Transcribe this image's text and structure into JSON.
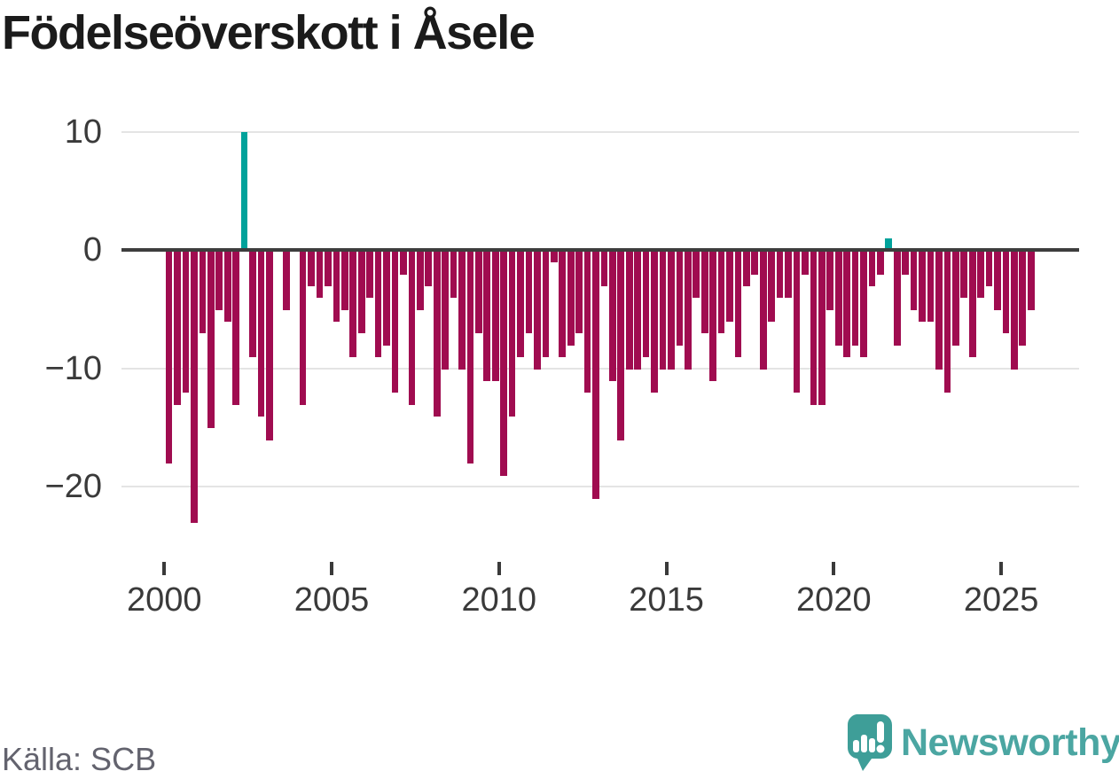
{
  "title": "Födelseöverskott i Åsele",
  "source": "Källa: SCB",
  "logo": {
    "text": "Newsworthy"
  },
  "chart_data": {
    "type": "bar",
    "title": "Födelseöverskott i Åsele",
    "x_period": "quarterly",
    "start": "2000Q1",
    "end": "2025Q4",
    "values": [
      -18,
      -13,
      -12,
      -23,
      -7,
      -15,
      -5,
      -6,
      -13,
      10,
      -9,
      -14,
      -16,
      0,
      -5,
      0,
      -13,
      -3,
      -4,
      -3,
      -6,
      -5,
      -9,
      -7,
      -4,
      -9,
      -8,
      -12,
      -2,
      -13,
      -5,
      -3,
      -14,
      -10,
      -4,
      -10,
      -18,
      -7,
      -11,
      -11,
      -19,
      -14,
      -9,
      -7,
      -10,
      -9,
      -1,
      -9,
      -8,
      -7,
      -12,
      -21,
      -3,
      -11,
      -16,
      -10,
      -10,
      -9,
      -12,
      -10,
      -10,
      -8,
      -10,
      -4,
      -7,
      -11,
      -7,
      -6,
      -9,
      -3,
      -2,
      -10,
      -6,
      -4,
      -4,
      -12,
      -2,
      -13,
      -13,
      -5,
      -8,
      -9,
      -8,
      -9,
      -3,
      -2,
      1,
      -8,
      -2,
      -5,
      -6,
      -6,
      -10,
      -12,
      -8,
      -4,
      -9,
      -4,
      -3,
      -5,
      -7,
      -10,
      -8,
      -5
    ],
    "x_ticks": [
      "2000",
      "2005",
      "2010",
      "2015",
      "2020",
      "2025"
    ],
    "y_ticks": [
      {
        "label": "10",
        "value": 10
      },
      {
        "label": "0",
        "value": 0
      },
      {
        "label": "−10",
        "value": -10
      },
      {
        "label": "−20",
        "value": -20
      }
    ],
    "ylim": [
      -25.5,
      11
    ],
    "grid": "horizontal",
    "legend": "none",
    "colors": {
      "negative": "#a00c50",
      "positive": "#00a29b"
    }
  }
}
